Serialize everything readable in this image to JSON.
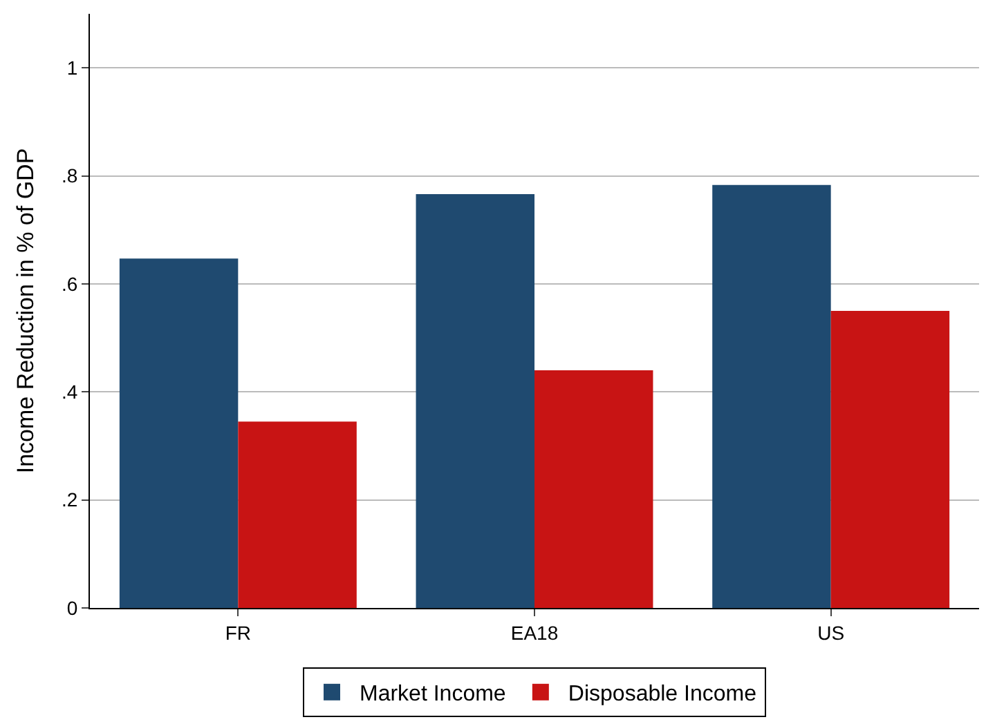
{
  "chart_data": {
    "type": "bar",
    "ylabel": "Income Reduction in % of GDP",
    "categories": [
      "FR",
      "EA18",
      "US"
    ],
    "series": [
      {
        "name": "Market Income",
        "color": "#1f4a70",
        "values": [
          0.647,
          0.766,
          0.783
        ]
      },
      {
        "name": "Disposable Income",
        "color": "#c81414",
        "values": [
          0.345,
          0.44,
          0.55
        ]
      }
    ],
    "ylim": [
      0,
      1.1
    ],
    "yticks": [
      {
        "value": 0,
        "label": "0"
      },
      {
        "value": 0.2,
        "label": ".2"
      },
      {
        "value": 0.4,
        "label": ".4"
      },
      {
        "value": 0.6,
        "label": ".6"
      },
      {
        "value": 0.8,
        "label": ".8"
      },
      {
        "value": 1,
        "label": "1"
      }
    ],
    "grid": "y",
    "legend": "bottom"
  }
}
